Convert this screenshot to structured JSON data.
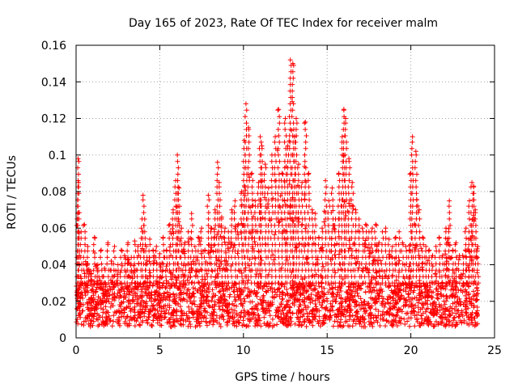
{
  "chart_data": {
    "type": "scatter",
    "title": "Day 165 of 2023, Rate Of TEC Index for receiver malm",
    "xlabel": "GPS time / hours",
    "ylabel": "ROTI / TECUs",
    "xlim": [
      0,
      25
    ],
    "ylim": [
      0,
      0.16
    ],
    "x_ticks": [
      0,
      5,
      10,
      15,
      20,
      25
    ],
    "x_tick_labels": [
      "0",
      "5",
      "10",
      "15",
      "20",
      "25"
    ],
    "y_ticks": [
      0,
      0.02,
      0.04,
      0.06,
      0.08,
      0.1,
      0.12,
      0.14,
      0.16
    ],
    "y_tick_labels": [
      "0",
      "0.02",
      "0.04",
      "0.06",
      "0.08",
      "0.1",
      "0.12",
      "0.14",
      "0.16"
    ],
    "grid": true,
    "marker": "+",
    "series": [
      {
        "name": "ROTI",
        "color": "#ff0000",
        "x": [
          0.05,
          0.1,
          0.12,
          0.15,
          0.2,
          0.25,
          0.3,
          0.4,
          0.5,
          0.6,
          0.7,
          0.9,
          1.1,
          1.3,
          1.5,
          1.7,
          1.9,
          2.1,
          2.3,
          2.5,
          2.7,
          2.9,
          3.1,
          3.3,
          3.5,
          3.7,
          3.9,
          4.0,
          4.1,
          4.2,
          4.4,
          4.6,
          4.8,
          5.0,
          5.2,
          5.4,
          5.6,
          5.8,
          5.95,
          6.05,
          6.15,
          6.3,
          6.5,
          6.7,
          6.9,
          7.1,
          7.3,
          7.5,
          7.7,
          7.9,
          8.1,
          8.3,
          8.45,
          8.55,
          8.7,
          8.9,
          9.1,
          9.3,
          9.5,
          9.7,
          9.9,
          10.05,
          10.15,
          10.3,
          10.5,
          10.7,
          10.9,
          11.0,
          11.1,
          11.3,
          11.5,
          11.7,
          11.9,
          12.1,
          12.3,
          12.5,
          12.65,
          12.8,
          12.95,
          13.05,
          13.15,
          13.3,
          13.5,
          13.7,
          13.9,
          14.1,
          14.3,
          14.5,
          14.7,
          14.9,
          15.1,
          15.3,
          15.5,
          15.7,
          15.9,
          16.0,
          16.1,
          16.3,
          16.5,
          16.7,
          16.9,
          17.1,
          17.3,
          17.5,
          17.7,
          17.9,
          18.1,
          18.3,
          18.5,
          18.7,
          18.9,
          19.1,
          19.3,
          19.5,
          19.7,
          19.9,
          20.0,
          20.1,
          20.3,
          20.5,
          20.7,
          20.9,
          21.1,
          21.3,
          21.5,
          21.7,
          21.9,
          22.1,
          22.3,
          22.5,
          22.7,
          22.9,
          23.1,
          23.3,
          23.5,
          23.65,
          23.75,
          23.85,
          24.0
        ],
        "values": [
          0.025,
          0.068,
          0.098,
          0.085,
          0.045,
          0.022,
          0.058,
          0.03,
          0.062,
          0.04,
          0.05,
          0.035,
          0.055,
          0.04,
          0.048,
          0.038,
          0.052,
          0.042,
          0.05,
          0.04,
          0.048,
          0.045,
          0.052,
          0.044,
          0.053,
          0.05,
          0.06,
          0.078,
          0.065,
          0.05,
          0.054,
          0.048,
          0.05,
          0.046,
          0.055,
          0.048,
          0.062,
          0.07,
          0.086,
          0.1,
          0.082,
          0.06,
          0.052,
          0.058,
          0.068,
          0.05,
          0.055,
          0.06,
          0.048,
          0.078,
          0.06,
          0.07,
          0.096,
          0.085,
          0.066,
          0.06,
          0.058,
          0.07,
          0.075,
          0.062,
          0.08,
          0.108,
          0.128,
          0.115,
          0.09,
          0.075,
          0.085,
          0.11,
          0.105,
          0.095,
          0.082,
          0.1,
          0.11,
          0.125,
          0.09,
          0.12,
          0.105,
          0.152,
          0.15,
          0.11,
          0.12,
          0.095,
          0.085,
          0.118,
          0.09,
          0.07,
          0.068,
          0.055,
          0.06,
          0.086,
          0.075,
          0.082,
          0.065,
          0.09,
          0.11,
          0.125,
          0.12,
          0.098,
          0.085,
          0.07,
          0.065,
          0.06,
          0.062,
          0.058,
          0.06,
          0.062,
          0.052,
          0.058,
          0.06,
          0.054,
          0.05,
          0.055,
          0.058,
          0.052,
          0.05,
          0.048,
          0.09,
          0.11,
          0.102,
          0.07,
          0.055,
          0.05,
          0.048,
          0.045,
          0.05,
          0.055,
          0.045,
          0.06,
          0.075,
          0.048,
          0.052,
          0.045,
          0.045,
          0.06,
          0.075,
          0.085,
          0.083,
          0.07,
          0.05
        ]
      }
    ]
  }
}
